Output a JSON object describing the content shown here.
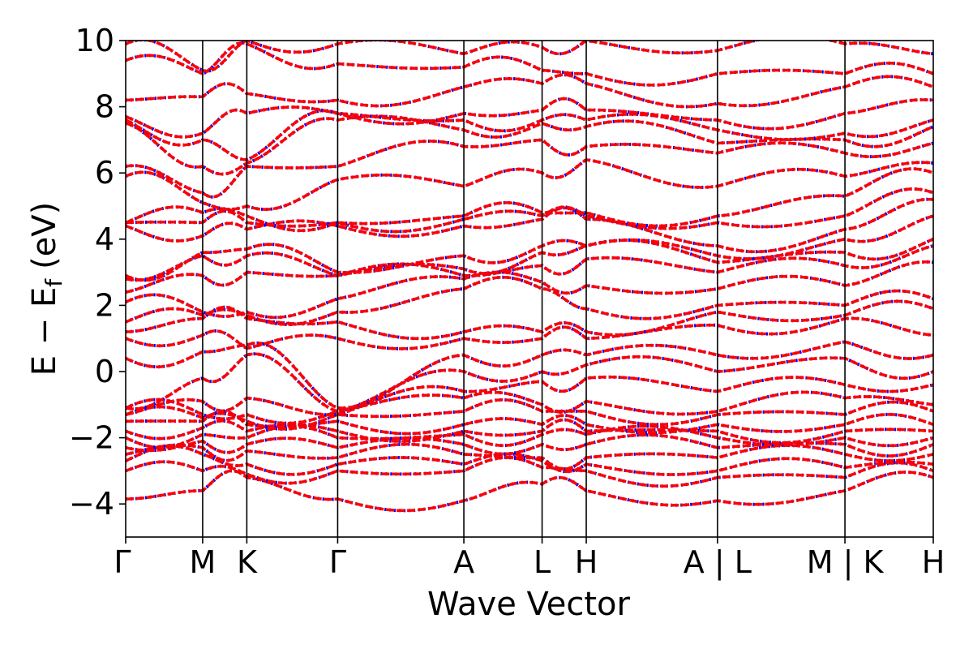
{
  "chart_data": {
    "type": "line",
    "title": "",
    "xlabel": "Wave Vector",
    "ylabel": "E − E",
    "ylabel_subscript": "f",
    "ylabel_unit": "(eV)",
    "ylim": [
      -5,
      10
    ],
    "yticks": [
      {
        "value": -4,
        "label": "−4"
      },
      {
        "value": -2,
        "label": "−2"
      },
      {
        "value": 0,
        "label": "0"
      },
      {
        "value": 2,
        "label": "2"
      },
      {
        "value": 4,
        "label": "4"
      },
      {
        "value": 6,
        "label": "6"
      },
      {
        "value": 8,
        "label": "8"
      },
      {
        "value": 10,
        "label": "10"
      }
    ],
    "xlim": [
      0,
      6.4
    ],
    "high_symmetry_points": [
      {
        "x": 0.0,
        "label": "Γ"
      },
      {
        "x": 0.61,
        "label": "M"
      },
      {
        "x": 0.96,
        "label": "K"
      },
      {
        "x": 1.68,
        "label": "Γ"
      },
      {
        "x": 2.68,
        "label": "A"
      },
      {
        "x": 3.3,
        "label": "L"
      },
      {
        "x": 3.65,
        "label": "H"
      },
      {
        "x": 4.69,
        "label": "A | L"
      },
      {
        "x": 5.7,
        "label": "M | K"
      },
      {
        "x": 6.4,
        "label": "H"
      }
    ],
    "series_colors": {
      "dotted": "#0000ff",
      "dashed": "#ff0000"
    },
    "grid": false,
    "legend": "none",
    "band_energies_at_points": [
      [
        -3.85,
        -3.6,
        -3.2,
        -3.85,
        -3.9,
        -3.4,
        -3.6,
        -3.9,
        -3.6,
        -3.2
      ],
      [
        -3.0,
        -3.0,
        -3.1,
        -3.0,
        -3.0,
        -2.9,
        -3.0,
        -3.2,
        -3.2,
        -3.0
      ],
      [
        -2.7,
        -2.5,
        -2.8,
        -2.8,
        -2.8,
        -2.7,
        -2.8,
        -3.0,
        -2.9,
        -2.8
      ],
      [
        -2.5,
        -2.3,
        -2.4,
        -2.6,
        -2.5,
        -2.6,
        -2.6,
        -2.6,
        -2.5,
        -2.5
      ],
      [
        -2.3,
        -2.1,
        -2.2,
        -2.3,
        -2.2,
        -2.2,
        -2.2,
        -2.3,
        -2.2,
        -2.2
      ],
      [
        -2.0,
        -1.9,
        -2.0,
        -2.0,
        -1.9,
        -1.9,
        -1.9,
        -2.0,
        -2.0,
        -2.0
      ],
      [
        -1.8,
        -1.7,
        -1.8,
        -1.8,
        -1.8,
        -1.8,
        -1.8,
        -1.8,
        -1.8,
        -1.8
      ],
      [
        -1.5,
        -1.5,
        -1.6,
        -1.5,
        -1.6,
        -1.6,
        -1.6,
        -1.6,
        -1.6,
        -1.6
      ],
      [
        -1.3,
        -1.4,
        -1.5,
        -1.3,
        -1.2,
        -1.2,
        -1.2,
        -1.3,
        -1.3,
        -1.2
      ],
      [
        -1.1,
        -1.3,
        -1.3,
        -1.2,
        -0.8,
        -1.0,
        -0.9,
        -1.2,
        -0.8,
        -1.0
      ],
      [
        -1.3,
        -0.9,
        -0.8,
        -1.3,
        -0.6,
        -0.3,
        -0.2,
        -0.6,
        -0.4,
        -0.4
      ],
      [
        -1.1,
        -0.2,
        0.5,
        -1.2,
        0.0,
        0.0,
        0.2,
        0.0,
        0.4,
        0.0
      ],
      [
        0.4,
        0.6,
        0.8,
        -1.1,
        0.5,
        0.5,
        0.5,
        0.5,
        0.9,
        0.5
      ],
      [
        1.0,
        1.1,
        0.7,
        1.0,
        1.0,
        1.0,
        1.0,
        1.4,
        1.6,
        1.1
      ],
      [
        1.2,
        1.6,
        1.6,
        1.5,
        1.2,
        1.2,
        1.2,
        1.8,
        1.7,
        1.9
      ],
      [
        1.5,
        1.7,
        1.7,
        1.8,
        2.5,
        2.5,
        1.9,
        2.0,
        2.0,
        2.2
      ],
      [
        2.1,
        1.8,
        1.8,
        2.2,
        2.8,
        2.7,
        2.6,
        2.5,
        2.6,
        3.3
      ],
      [
        2.4,
        2.9,
        3.0,
        2.9,
        2.9,
        3.2,
        3.4,
        3.0,
        3.2,
        3.8
      ],
      [
        2.8,
        3.5,
        3.5,
        2.9,
        3.1,
        3.6,
        3.8,
        3.3,
        3.6,
        4.0
      ],
      [
        2.9,
        3.6,
        3.7,
        3.0,
        3.5,
        3.8,
        3.8,
        3.5,
        4.0,
        4.7
      ],
      [
        4.4,
        4.1,
        4.3,
        4.4,
        4.4,
        4.6,
        4.6,
        3.8,
        4.3,
        5.2
      ],
      [
        4.5,
        4.5,
        4.5,
        4.5,
        4.6,
        4.7,
        4.7,
        4.5,
        4.7,
        5.4
      ],
      [
        4.5,
        4.8,
        4.7,
        4.5,
        4.7,
        4.8,
        4.8,
        4.7,
        5.3,
        6.0
      ],
      [
        5.9,
        5.1,
        5.0,
        5.8,
        5.6,
        6.0,
        6.4,
        5.6,
        5.9,
        6.3
      ],
      [
        6.2,
        5.4,
        6.2,
        6.2,
        6.8,
        7.0,
        6.8,
        6.6,
        6.6,
        6.9
      ],
      [
        7.5,
        6.2,
        6.3,
        7.6,
        7.3,
        7.5,
        7.4,
        6.9,
        7.0,
        7.4
      ],
      [
        7.6,
        7.0,
        6.4,
        7.8,
        7.6,
        7.6,
        7.6,
        7.3,
        7.2,
        7.6
      ],
      [
        7.7,
        7.2,
        7.8,
        7.8,
        7.8,
        7.9,
        7.9,
        7.6,
        7.8,
        8.2
      ],
      [
        8.2,
        8.3,
        8.4,
        8.2,
        8.6,
        8.7,
        8.7,
        8.1,
        8.6,
        8.6
      ],
      [
        9.4,
        9.0,
        9.9,
        9.3,
        9.2,
        9.1,
        9.0,
        9.0,
        9.0,
        9.0
      ],
      [
        9.9,
        9.1,
        10.0,
        9.9,
        9.6,
        9.8,
        10.0,
        9.7,
        9.9,
        9.6
      ]
    ]
  }
}
